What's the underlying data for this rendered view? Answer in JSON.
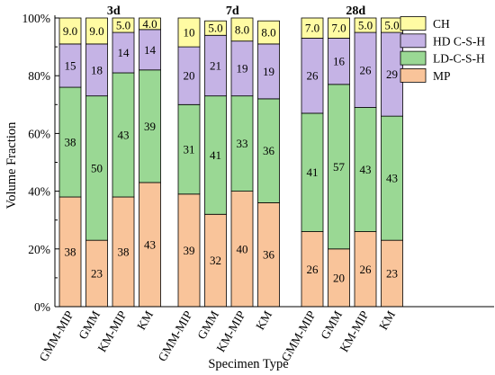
{
  "chart_data": {
    "type": "bar",
    "stacked": true,
    "xlabel": "Specimen Type",
    "ylabel": "Volume Fraction",
    "ylim": [
      0,
      100
    ],
    "yticks": [
      "0%",
      "20%",
      "40%",
      "60%",
      "80%",
      "100%"
    ],
    "ytick_values": [
      0,
      20,
      40,
      60,
      80,
      100
    ],
    "grid": false,
    "legend_position": "top-right",
    "series_order_bottom_to_top": [
      "MP",
      "LD-C-S-H",
      "HD C-S-H",
      "CH"
    ],
    "legend_order": [
      "CH",
      "HD C-S-H",
      "LD-C-S-H",
      "MP"
    ],
    "colors": {
      "MP": "#F9C49A",
      "LD-C-S-H": "#9AD894",
      "HD C-S-H": "#C5B3E5",
      "CH": "#FFFBA3"
    },
    "groups": [
      {
        "label": "3d",
        "categories": [
          "GMM-MIP",
          "GMM",
          "KM-MIP",
          "KM"
        ],
        "values": {
          "MP": [
            38,
            23,
            38,
            43
          ],
          "LD-C-S-H": [
            38,
            50,
            43,
            39
          ],
          "HD C-S-H": [
            15,
            18,
            14,
            14
          ],
          "CH": [
            9.0,
            9.0,
            5.0,
            4.0
          ]
        },
        "labels": {
          "MP": [
            "38",
            "23",
            "38",
            "43"
          ],
          "LD-C-S-H": [
            "38",
            "50",
            "43",
            "39"
          ],
          "HD C-S-H": [
            "15",
            "18",
            "14",
            "14"
          ],
          "CH": [
            "9.0",
            "9.0",
            "5.0",
            "4.0"
          ]
        }
      },
      {
        "label": "7d",
        "categories": [
          "GMM-MIP",
          "GMM",
          "KM-MIP",
          "KM"
        ],
        "values": {
          "MP": [
            39,
            32,
            40,
            36
          ],
          "LD-C-S-H": [
            31,
            41,
            33,
            36
          ],
          "HD C-S-H": [
            20,
            21,
            19,
            19
          ],
          "CH": [
            10,
            5.0,
            8.0,
            8.0
          ]
        },
        "labels": {
          "MP": [
            "39",
            "32",
            "40",
            "36"
          ],
          "LD-C-S-H": [
            "31",
            "41",
            "33",
            "36"
          ],
          "HD C-S-H": [
            "20",
            "21",
            "19",
            "19"
          ],
          "CH": [
            "10",
            "5.0",
            "8.0",
            "8.0"
          ]
        }
      },
      {
        "label": "28d",
        "categories": [
          "GMM-MIP",
          "GMM",
          "KM-MIP",
          "KM"
        ],
        "values": {
          "MP": [
            26,
            20,
            26,
            23
          ],
          "LD-C-S-H": [
            41,
            57,
            43,
            43
          ],
          "HD C-S-H": [
            26,
            16,
            26,
            29
          ],
          "CH": [
            7.0,
            7.0,
            5.0,
            5.0
          ]
        },
        "labels": {
          "MP": [
            "26",
            "20",
            "26",
            "23"
          ],
          "LD-C-S-H": [
            "41",
            "57",
            "43",
            "43"
          ],
          "HD C-S-H": [
            "26",
            "16",
            "26",
            "29"
          ],
          "CH": [
            "7.0",
            "7.0",
            "5.0",
            "5.0"
          ]
        }
      }
    ]
  }
}
